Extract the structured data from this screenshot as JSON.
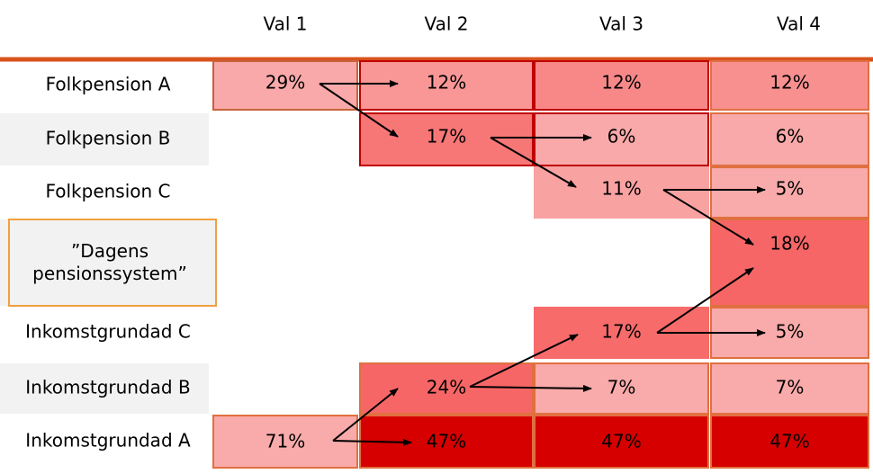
{
  "columns": [
    "Val 1",
    "Val 2",
    "Val 3",
    "Val 4"
  ],
  "rows": [
    {
      "label": "Folkpension A",
      "cells": [
        {
          "text": "29%",
          "color": "#f9a9a9",
          "border": "#c8623a"
        },
        {
          "text": "12%",
          "color": "#f99797",
          "border": "#c00000"
        },
        {
          "text": "12%",
          "color": "#f88888",
          "border": "#c00000"
        },
        {
          "text": "12%",
          "color": "#f99090",
          "border": "#e07040"
        }
      ]
    },
    {
      "label": "Folkpension B",
      "cells": [
        null,
        {
          "text": "17%",
          "color": "#f77777",
          "border": "#c00000"
        },
        {
          "text": "6%",
          "color": "#f9a9a9",
          "border": "#c00000"
        },
        {
          "text": "6%",
          "color": "#f9a9a9",
          "border": "#e07040"
        }
      ]
    },
    {
      "label": "Folkpension C",
      "cells": [
        null,
        null,
        {
          "text": "11%",
          "color": "#f9a2a2",
          "border": "#f9a2a2"
        },
        {
          "text": "5%",
          "color": "#f9aaaa",
          "border": "#e07040"
        }
      ]
    },
    {
      "label": "”Dagens pensionssystem”",
      "cells": [
        null,
        null,
        null,
        {
          "text": "18%",
          "color": "#f76666",
          "border": "#e07040"
        }
      ]
    },
    {
      "label": "Inkomstgrundad C",
      "cells": [
        null,
        null,
        {
          "text": "17%",
          "color": "#f76b6b",
          "border": "#f76b6b"
        },
        {
          "text": "5%",
          "color": "#f9aaaa",
          "border": "#e07040"
        }
      ]
    },
    {
      "label": "Inkomstgrundad B",
      "cells": [
        null,
        {
          "text": "24%",
          "color": "#f76666",
          "border": "#e07040"
        },
        {
          "text": "7%",
          "color": "#f9aaaa",
          "border": "#e07040"
        },
        {
          "text": "7%",
          "color": "#f9aaaa",
          "border": "#e07040"
        }
      ]
    },
    {
      "label": "Inkomstgrundad A",
      "cells": [
        {
          "text": "71%",
          "color": "#f9aaaa",
          "border": "#e07040"
        },
        {
          "text": "47%",
          "color": "#d60000",
          "border": "#e07040"
        },
        {
          "text": "47%",
          "color": "#d60000",
          "border": "#e07040"
        },
        {
          "text": "47%",
          "color": "#d60000",
          "border": "#e07040"
        }
      ]
    }
  ]
}
